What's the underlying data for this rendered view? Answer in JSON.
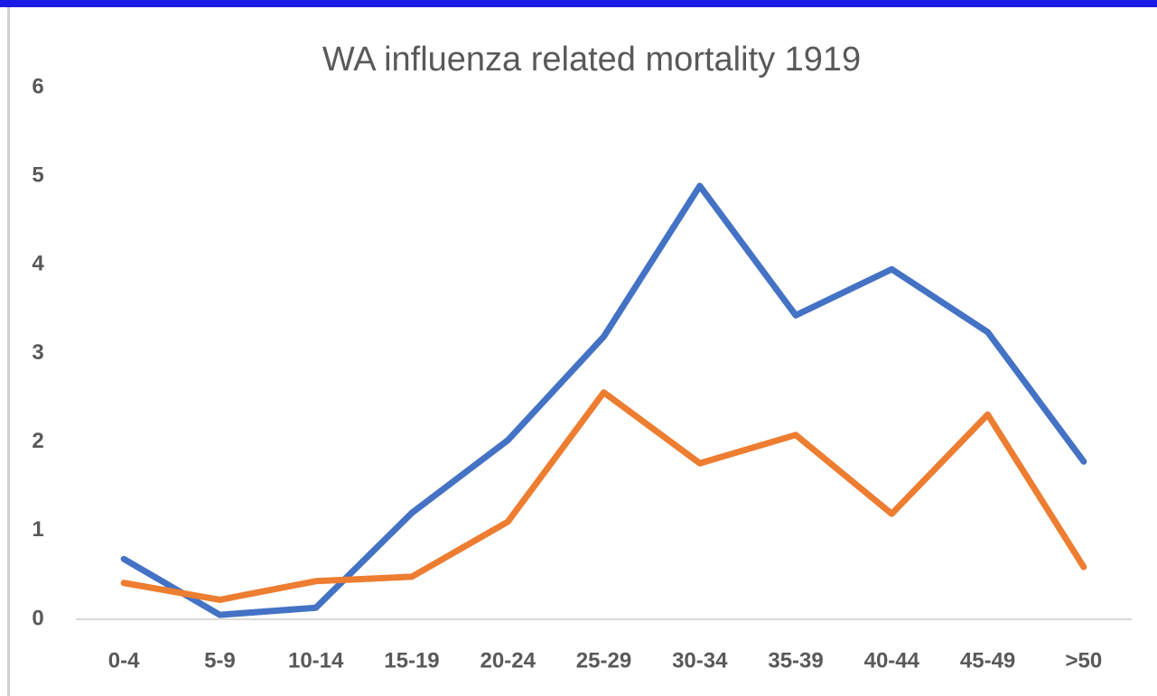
{
  "chart_data": {
    "type": "line",
    "title": "WA influenza related mortality 1919",
    "categories": [
      "0-4",
      "5-9",
      "10-14",
      "15-19",
      "20-24",
      "25-29",
      "30-34",
      "35-39",
      "40-44",
      "45-49",
      ">50"
    ],
    "series": [
      {
        "color": "#4472c4",
        "values": [
          0.68,
          0.05,
          0.13,
          1.2,
          2.02,
          3.19,
          4.89,
          3.43,
          3.95,
          3.24,
          1.78
        ]
      },
      {
        "color": "#ed7d31",
        "values": [
          0.41,
          0.22,
          0.43,
          0.48,
          1.1,
          2.56,
          1.76,
          2.08,
          1.19,
          2.31,
          0.59
        ]
      }
    ],
    "ylim": [
      0,
      6
    ],
    "yticks": [
      0,
      1,
      2,
      3,
      4,
      5,
      6
    ],
    "grid": false
  }
}
